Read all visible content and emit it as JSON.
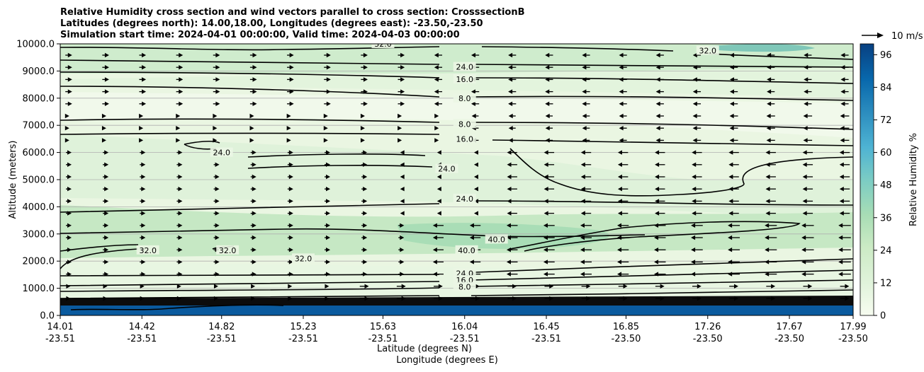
{
  "chart_data": {
    "type": "heatmap",
    "title": [
      "Relative Humidity cross section and wind vectors parallel to cross section: CrosssectionB",
      "Latitudes (degrees north): 14.00,18.00, Longitudes (degrees east): -23.50,-23.50",
      "Simulation start time: 2024-04-01 00:00:00, Valid time: 2024-04-03 00:00:00"
    ],
    "ylabel": "Altitude (meters)",
    "xlabel": [
      "Latitude (degrees N)",
      "Longitude (degrees E)"
    ],
    "ylim": [
      0,
      10000
    ],
    "yticks": [
      "0.0",
      "1000.0",
      "2000.0",
      "3000.0",
      "4000.0",
      "5000.0",
      "6000.0",
      "7000.0",
      "8000.0",
      "9000.0",
      "10000.0"
    ],
    "ytick_values": [
      0,
      1000,
      2000,
      3000,
      4000,
      5000,
      6000,
      7000,
      8000,
      9000,
      10000
    ],
    "xlim": [
      14.01,
      17.99
    ],
    "xtick_values": [
      14.01,
      14.42,
      14.82,
      15.23,
      15.63,
      16.04,
      16.45,
      16.85,
      17.26,
      17.67,
      17.99
    ],
    "xticks_lat": [
      "14.01",
      "14.42",
      "14.82",
      "15.23",
      "15.63",
      "16.04",
      "16.45",
      "16.85",
      "17.26",
      "17.67",
      "17.99"
    ],
    "xticks_lon": [
      "-23.51",
      "-23.51",
      "-23.51",
      "-23.51",
      "-23.51",
      "-23.51",
      "-23.51",
      "-23.50",
      "-23.50",
      "-23.50",
      "-23.50"
    ],
    "grid": "horizontal",
    "colorbar": {
      "label": "Relative Humidity %",
      "range": [
        0,
        100
      ],
      "ticks": [
        "0",
        "12",
        "24",
        "36",
        "48",
        "60",
        "72",
        "84",
        "96"
      ],
      "tick_values": [
        0,
        12,
        24,
        36,
        48,
        60,
        72,
        84,
        96
      ],
      "colormap": "GnBu",
      "colors": [
        "#f7fcf0",
        "#e0f3db",
        "#ccebc5",
        "#a8ddb5",
        "#7bccc4",
        "#4eb3d3",
        "#2b8cbe",
        "#0868ac",
        "#084081"
      ]
    },
    "quiver_key": "10 m/s",
    "contour_labels": [
      {
        "label": "32.0",
        "x": 15.63,
        "y": 10000
      },
      {
        "label": "32.0",
        "x": 17.26,
        "y": 9750
      },
      {
        "label": "24.0",
        "x": 16.04,
        "y": 9150
      },
      {
        "label": "16.0",
        "x": 16.04,
        "y": 8700
      },
      {
        "label": "8.0",
        "x": 16.04,
        "y": 8000
      },
      {
        "label": "8.0",
        "x": 16.04,
        "y": 7050
      },
      {
        "label": "16.0",
        "x": 16.04,
        "y": 6500
      },
      {
        "label": "24.0",
        "x": 14.82,
        "y": 6000
      },
      {
        "label": "24.0",
        "x": 15.95,
        "y": 5400
      },
      {
        "label": "24.0",
        "x": 16.04,
        "y": 4300
      },
      {
        "label": "40.0",
        "x": 16.2,
        "y": 2800
      },
      {
        "label": "40.0",
        "x": 16.05,
        "y": 2400
      },
      {
        "label": "32.0",
        "x": 14.45,
        "y": 2400
      },
      {
        "label": "32.0",
        "x": 14.85,
        "y": 2400
      },
      {
        "label": "32.0",
        "x": 15.23,
        "y": 2100
      },
      {
        "label": "24.0",
        "x": 16.04,
        "y": 1550
      },
      {
        "label": "16.0",
        "x": 16.04,
        "y": 1300
      },
      {
        "label": "8.0",
        "x": 16.04,
        "y": 1050
      }
    ]
  }
}
